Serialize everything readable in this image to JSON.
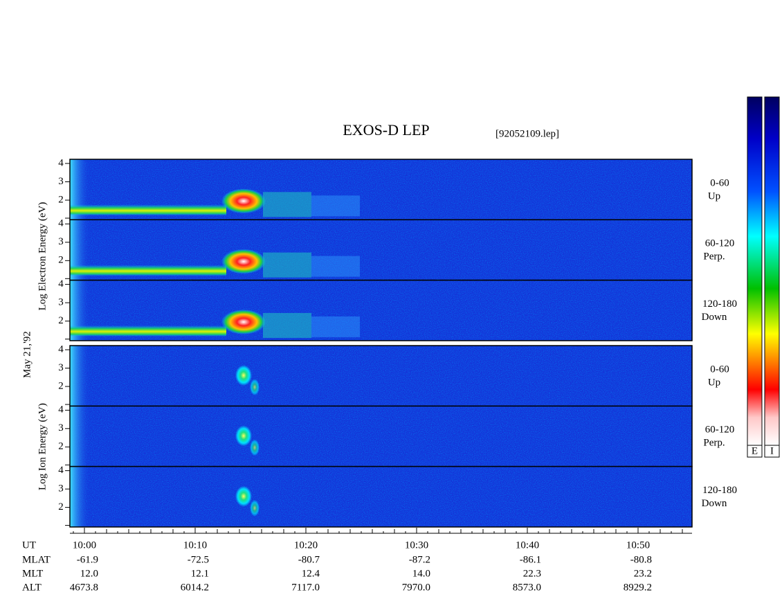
{
  "title": "EXOS-D LEP",
  "file": "[92052109.lep]",
  "date": "May 21,'92",
  "electron": {
    "ylabel": "Log  Electron  Energy (eV)",
    "panels": [
      {
        "range": "0-60",
        "dir": "Up",
        "ticks": [
          "4",
          "3",
          "2"
        ]
      },
      {
        "range": "60-120",
        "dir": "Perp.",
        "ticks": [
          "4",
          "3",
          "2"
        ]
      },
      {
        "range": "120-180",
        "dir": "Down",
        "ticks": [
          "4",
          "3",
          "2"
        ]
      }
    ]
  },
  "ion": {
    "ylabel": "Log  Ion  Energy (eV)",
    "panels": [
      {
        "range": "0-60",
        "dir": "Up",
        "ticks": [
          "4",
          "3",
          "2"
        ]
      },
      {
        "range": "60-120",
        "dir": "Perp.",
        "ticks": [
          "4",
          "3",
          "2"
        ]
      },
      {
        "range": "120-180",
        "dir": "Down",
        "ticks": [
          "4",
          "3",
          "2"
        ]
      }
    ]
  },
  "colorbar": [
    "E",
    "I"
  ],
  "time_label": "UT",
  "time_ticks": [
    "10:00",
    "10:10",
    "10:20",
    "10:30",
    "10:40",
    "10:50"
  ],
  "ephemeris": [
    {
      "label": "MLAT",
      "values": [
        "-61.9",
        "-72.5",
        "-80.7",
        "-87.2",
        "-86.1",
        "-80.8"
      ]
    },
    {
      "label": "MLT",
      "values": [
        "12.0",
        "12.1",
        "12.4",
        "14.0",
        "22.3",
        "23.2"
      ]
    },
    {
      "label": "ALT",
      "values": [
        "4673.8",
        "6014.2",
        "7117.0",
        "7970.0",
        "8573.0",
        "8929.2"
      ]
    }
  ]
}
